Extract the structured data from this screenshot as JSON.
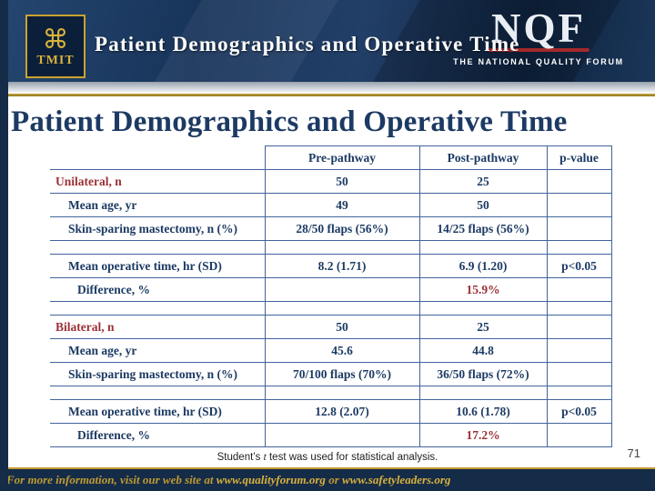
{
  "colors": {
    "navy": "#1a3659",
    "stripe_navy": "#152c49",
    "gold": "#c49a2e",
    "table_border": "#41639c",
    "text_blue": "#1c3a63",
    "maroon": "#9c3136",
    "nqf_red": "#a3292b"
  },
  "header": {
    "logo": {
      "text": "TMIT",
      "emblem_glyph": "⌘"
    },
    "title": "Patient Demographics and Operative Time",
    "nqf": {
      "letters": "NQF",
      "tagline": "THE NATIONAL QUALITY FORUM"
    }
  },
  "content": {
    "title": "Patient Demographics and Operative Time",
    "table": {
      "columns": {
        "pre": "Pre-pathway",
        "post": "Post-pathway",
        "p": "p-value"
      },
      "rows": [
        {
          "label": "Unilateral, n",
          "pre": "50",
          "post": "25",
          "p": "",
          "indent": 0,
          "label_maroon": true
        },
        {
          "label": "Mean age, yr",
          "pre": "49",
          "post": "50",
          "p": "",
          "indent": 1
        },
        {
          "label": "Skin-sparing mastectomy, n (%)",
          "pre": "28/50 flaps (56%)",
          "post": "14/25 flaps (56%)",
          "p": "",
          "indent": 1
        },
        {
          "spacer": true
        },
        {
          "label": "Mean operative time, hr (SD)",
          "pre": "8.2 (1.71)",
          "post": "6.9 (1.20)",
          "p": "p<0.05",
          "indent": 1
        },
        {
          "label": "Difference, %",
          "pre": "",
          "post": "15.9%",
          "p": "",
          "indent": 2,
          "post_maroon": true
        },
        {
          "spacer": true
        },
        {
          "label": "Bilateral, n",
          "pre": "50",
          "post": "25",
          "p": "",
          "indent": 0,
          "label_maroon": true
        },
        {
          "label": "Mean age, yr",
          "pre": "45.6",
          "post": "44.8",
          "p": "",
          "indent": 1
        },
        {
          "label": "Skin-sparing mastectomy, n (%)",
          "pre": "70/100 flaps (70%)",
          "post": "36/50 flaps (72%)",
          "p": "",
          "indent": 1
        },
        {
          "spacer": true
        },
        {
          "label": "Mean operative time, hr (SD)",
          "pre": "12.8 (2.07)",
          "post": "10.6 (1.78)",
          "p": "p<0.05",
          "indent": 1
        },
        {
          "label": "Difference, %",
          "pre": "",
          "post": "17.2%",
          "p": "",
          "indent": 2,
          "post_maroon": true
        }
      ]
    },
    "footnote": {
      "prefix": "Student’s ",
      "italic": "t",
      "suffix": " test was used for statistical analysis."
    },
    "page_number": "71"
  },
  "footer": {
    "prefix": "For more information, visit our web site at ",
    "url1": "www.qualityforum.org",
    "middle": " or ",
    "url2": "www.safetyleaders.org"
  }
}
